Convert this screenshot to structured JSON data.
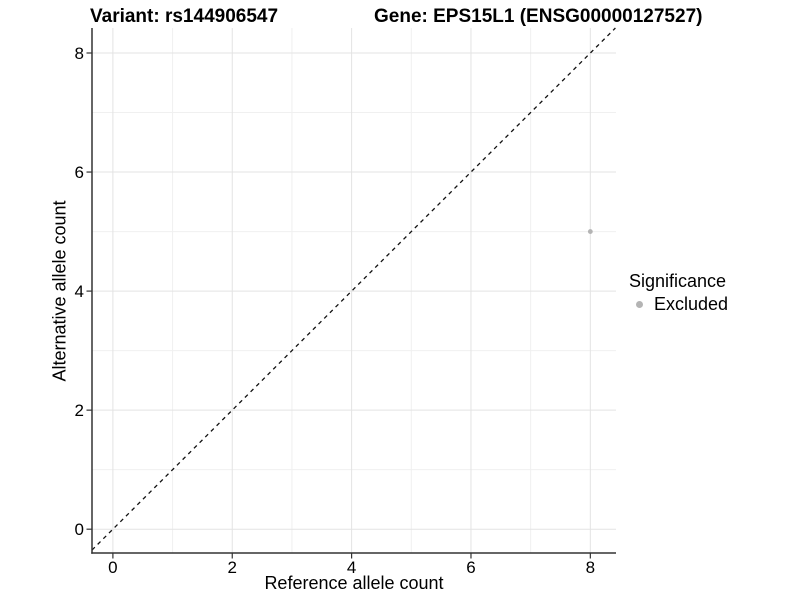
{
  "chart_data": {
    "type": "scatter",
    "title_left": "Variant: rs144906547",
    "title_right": "Gene: EPS15L1 (ENSG00000127527)",
    "xlabel": "Reference allele count",
    "ylabel": "Alternative allele count",
    "xlim": [
      -0.35,
      8.43
    ],
    "ylim": [
      -0.4,
      8.42
    ],
    "x_major_ticks": [
      0,
      2,
      4,
      6,
      8
    ],
    "y_major_ticks": [
      0,
      2,
      4,
      6,
      8
    ],
    "x_minor_ticks": [
      1,
      3,
      5,
      7
    ],
    "y_minor_ticks": [
      1,
      3,
      5,
      7
    ],
    "grid": true,
    "identity_line": {
      "equation": "y = x",
      "style": "dashed"
    },
    "points": [
      {
        "x": 8,
        "y": 5,
        "significance": "Excluded"
      }
    ],
    "legend": {
      "title": "Significance",
      "position": "right",
      "entries": [
        {
          "label": "Excluded",
          "color": "#b4b4b4"
        }
      ]
    },
    "colors": {
      "point": "#b4b4b4",
      "grid_major": "#e3e3e3",
      "grid_minor": "#f0f0f0",
      "axis": "#333333",
      "identity_line": "#111111",
      "text": "#000000"
    }
  }
}
